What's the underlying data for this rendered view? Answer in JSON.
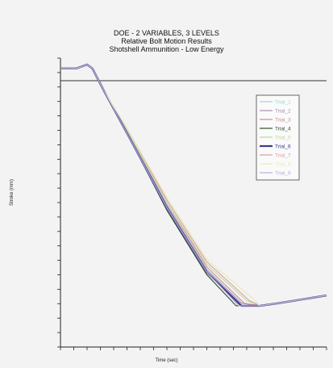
{
  "chart_data": {
    "type": "line",
    "title": [
      "DOE - 2 VARIABLES, 3 LEVELS",
      "Relative Bolt Motion Results",
      "Shotshell Ammunition - Low Energy"
    ],
    "xlabel": "Time (sec)",
    "ylabel": "Stroke (mm)",
    "grid": false,
    "legend_position": "top-right",
    "series": [
      {
        "name": "Trial_1",
        "color": "#9fd8d8",
        "x": [
          0,
          6,
          10,
          12,
          16,
          26,
          40,
          55,
          68,
          75,
          82,
          100
        ],
        "y": [
          100,
          100,
          101.5,
          100,
          92,
          73,
          46,
          21,
          8,
          8,
          9,
          12
        ]
      },
      {
        "name": "Trial_2",
        "color": "#a58fb4",
        "x": [
          0,
          6,
          10,
          12,
          16,
          26,
          40,
          55,
          68,
          75,
          82,
          100
        ],
        "y": [
          100,
          100,
          101.5,
          100,
          92,
          74,
          47,
          22,
          9,
          8,
          9,
          12
        ]
      },
      {
        "name": "Trial_3",
        "color": "#c79090",
        "x": [
          0,
          6,
          10,
          12,
          16,
          26,
          40,
          55,
          69,
          75,
          82,
          100
        ],
        "y": [
          100,
          100,
          101.5,
          100,
          92,
          74,
          48,
          23,
          9,
          8,
          9,
          12
        ]
      },
      {
        "name": "Trial_4",
        "color": "#2d4f2d",
        "x": [
          0,
          6,
          10,
          12,
          16,
          26,
          40,
          55,
          66,
          75,
          82,
          100
        ],
        "y": [
          100,
          100,
          101.5,
          100,
          92,
          73,
          45,
          20,
          8,
          8,
          9,
          12
        ]
      },
      {
        "name": "Trial_5",
        "color": "#b9d99c",
        "x": [
          0,
          6,
          10,
          12,
          16,
          26,
          40,
          55,
          70,
          75,
          82,
          100
        ],
        "y": [
          100,
          100,
          101.5,
          100,
          92,
          74,
          48,
          24,
          10,
          8,
          9,
          12
        ]
      },
      {
        "name": "Trial_6",
        "color": "#3c3c8c",
        "x": [
          0,
          6,
          10,
          12,
          16,
          26,
          40,
          55,
          68,
          75,
          82,
          100
        ],
        "y": [
          100,
          100,
          101.5,
          100,
          92,
          73,
          46,
          21,
          8,
          8,
          9,
          12
        ]
      },
      {
        "name": "Trial_7",
        "color": "#d9a0a0",
        "x": [
          0,
          6,
          10,
          12,
          16,
          26,
          40,
          55,
          71,
          75,
          82,
          100
        ],
        "y": [
          100,
          100,
          101.5,
          100,
          92,
          75,
          49,
          25,
          10,
          8,
          9,
          12
        ]
      },
      {
        "name": "Trial_8",
        "color": "#ece8b8",
        "x": [
          0,
          6,
          10,
          12,
          16,
          26,
          40,
          55,
          72,
          75,
          82,
          100
        ],
        "y": [
          100,
          100,
          101.5,
          100,
          92,
          75,
          50,
          26,
          11,
          8,
          9,
          12
        ]
      },
      {
        "name": "Trial_9",
        "color": "#b7b0d9",
        "x": [
          0,
          6,
          10,
          12,
          16,
          26,
          40,
          55,
          67,
          75,
          82,
          100
        ],
        "y": [
          100,
          100,
          101.5,
          100,
          92,
          73,
          46,
          21,
          8,
          8,
          9,
          12
        ]
      }
    ],
    "x_ticks": 20,
    "y_ticks": 20
  }
}
